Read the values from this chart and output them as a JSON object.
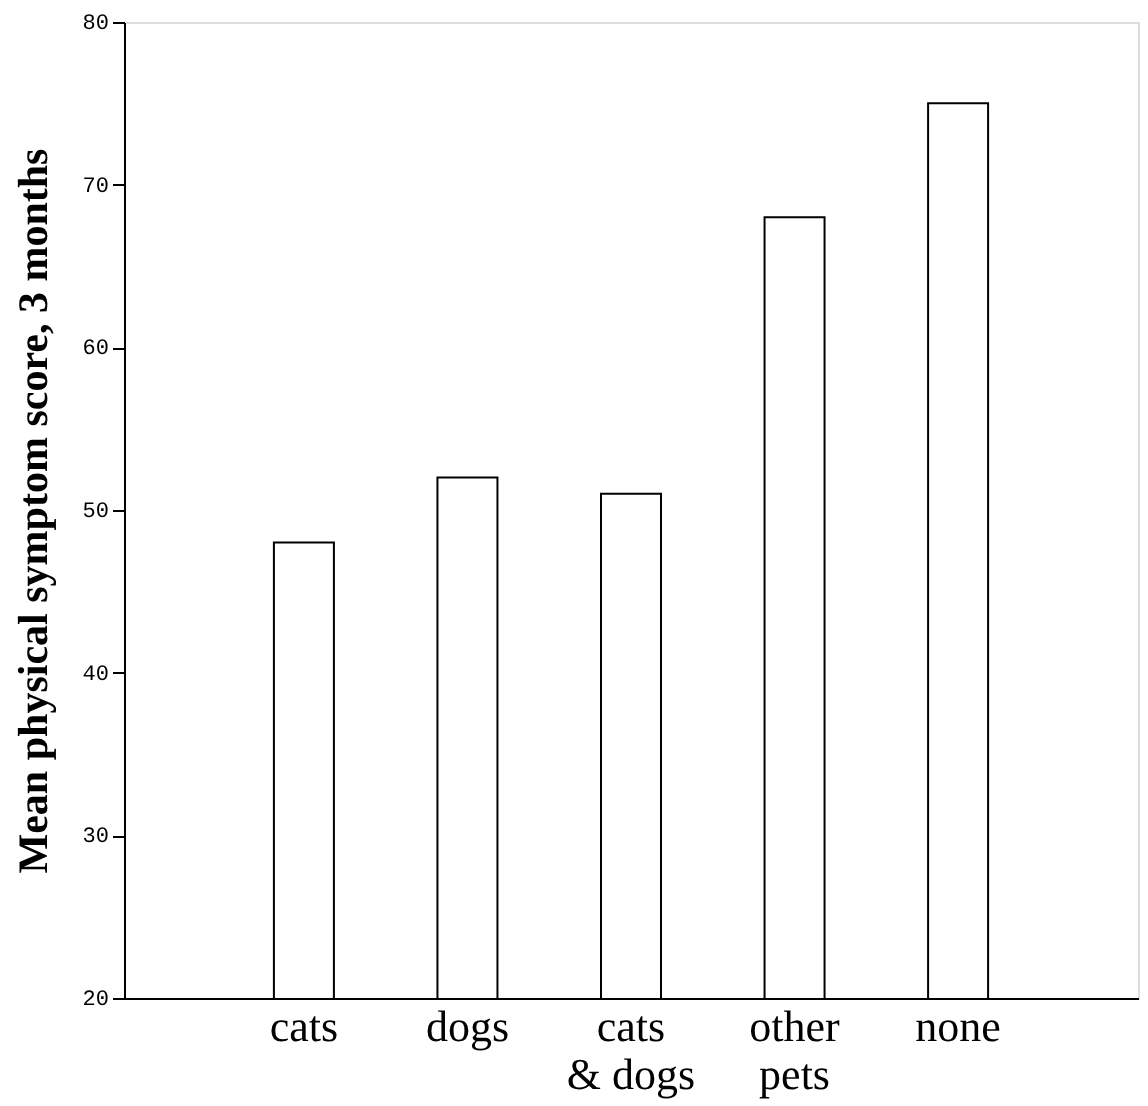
{
  "chart_data": {
    "type": "bar",
    "ylabel": "Mean physical symptom score, 3 months",
    "categories": [
      "cats",
      "dogs",
      "cats\n& dogs",
      "other\npets",
      "none"
    ],
    "values": [
      48,
      52,
      51,
      68,
      75
    ],
    "color": "#ffffff",
    "ylim": [
      20,
      80
    ],
    "yticks": [
      20,
      30,
      40,
      50,
      60,
      70,
      80
    ],
    "grid": false
  }
}
